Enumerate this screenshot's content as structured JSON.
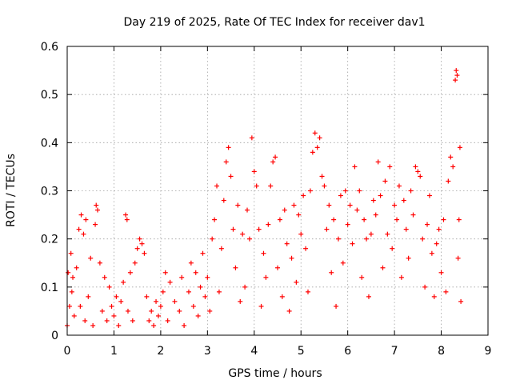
{
  "chart_data": {
    "type": "scatter",
    "title": "Day 219 of 2025, Rate Of TEC Index for receiver dav1",
    "xlabel": "GPS time / hours",
    "ylabel": "ROTI / TECUs",
    "xlim": [
      0,
      9
    ],
    "ylim": [
      0,
      0.6
    ],
    "xticks": [
      "0",
      "1",
      "2",
      "3",
      "4",
      "5",
      "6",
      "7",
      "8",
      "9"
    ],
    "yticks": [
      "0",
      "0.1",
      "0.2",
      "0.3",
      "0.4",
      "0.5",
      "0.6"
    ],
    "grid": true,
    "marker": "+",
    "color": "#ff0000",
    "series": [
      {
        "name": "dav1",
        "points": [
          [
            0.0,
            0.02
          ],
          [
            0.02,
            0.13
          ],
          [
            0.05,
            0.06
          ],
          [
            0.08,
            0.17
          ],
          [
            0.1,
            0.09
          ],
          [
            0.12,
            0.12
          ],
          [
            0.15,
            0.04
          ],
          [
            0.2,
            0.14
          ],
          [
            0.25,
            0.22
          ],
          [
            0.28,
            0.06
          ],
          [
            0.3,
            0.25
          ],
          [
            0.35,
            0.21
          ],
          [
            0.38,
            0.03
          ],
          [
            0.4,
            0.24
          ],
          [
            0.45,
            0.08
          ],
          [
            0.5,
            0.16
          ],
          [
            0.55,
            0.02
          ],
          [
            0.6,
            0.23
          ],
          [
            0.62,
            0.27
          ],
          [
            0.65,
            0.26
          ],
          [
            0.7,
            0.15
          ],
          [
            0.75,
            0.05
          ],
          [
            0.8,
            0.12
          ],
          [
            0.85,
            0.03
          ],
          [
            0.9,
            0.1
          ],
          [
            0.95,
            0.06
          ],
          [
            1.0,
            0.04
          ],
          [
            1.05,
            0.08
          ],
          [
            1.1,
            0.02
          ],
          [
            1.15,
            0.07
          ],
          [
            1.2,
            0.11
          ],
          [
            1.25,
            0.25
          ],
          [
            1.28,
            0.24
          ],
          [
            1.3,
            0.05
          ],
          [
            1.35,
            0.13
          ],
          [
            1.4,
            0.03
          ],
          [
            1.45,
            0.15
          ],
          [
            1.5,
            0.18
          ],
          [
            1.55,
            0.2
          ],
          [
            1.6,
            0.19
          ],
          [
            1.65,
            0.17
          ],
          [
            1.7,
            0.08
          ],
          [
            1.75,
            0.03
          ],
          [
            1.8,
            0.05
          ],
          [
            1.85,
            0.02
          ],
          [
            1.9,
            0.07
          ],
          [
            1.95,
            0.04
          ],
          [
            2.0,
            0.06
          ],
          [
            2.05,
            0.09
          ],
          [
            2.1,
            0.13
          ],
          [
            2.15,
            0.03
          ],
          [
            2.2,
            0.11
          ],
          [
            2.3,
            0.07
          ],
          [
            2.4,
            0.05
          ],
          [
            2.45,
            0.12
          ],
          [
            2.5,
            0.02
          ],
          [
            2.6,
            0.09
          ],
          [
            2.65,
            0.15
          ],
          [
            2.7,
            0.06
          ],
          [
            2.75,
            0.13
          ],
          [
            2.8,
            0.04
          ],
          [
            2.85,
            0.1
          ],
          [
            2.9,
            0.17
          ],
          [
            2.95,
            0.08
          ],
          [
            3.0,
            0.12
          ],
          [
            3.05,
            0.05
          ],
          [
            3.1,
            0.2
          ],
          [
            3.15,
            0.24
          ],
          [
            3.2,
            0.31
          ],
          [
            3.25,
            0.09
          ],
          [
            3.3,
            0.18
          ],
          [
            3.35,
            0.28
          ],
          [
            3.4,
            0.36
          ],
          [
            3.45,
            0.39
          ],
          [
            3.5,
            0.33
          ],
          [
            3.55,
            0.22
          ],
          [
            3.6,
            0.14
          ],
          [
            3.65,
            0.27
          ],
          [
            3.7,
            0.07
          ],
          [
            3.75,
            0.21
          ],
          [
            3.8,
            0.1
          ],
          [
            3.85,
            0.26
          ],
          [
            3.9,
            0.2
          ],
          [
            3.95,
            0.41
          ],
          [
            4.0,
            0.34
          ],
          [
            4.05,
            0.31
          ],
          [
            4.1,
            0.22
          ],
          [
            4.15,
            0.06
          ],
          [
            4.2,
            0.17
          ],
          [
            4.25,
            0.12
          ],
          [
            4.3,
            0.23
          ],
          [
            4.35,
            0.31
          ],
          [
            4.4,
            0.36
          ],
          [
            4.45,
            0.37
          ],
          [
            4.5,
            0.14
          ],
          [
            4.55,
            0.24
          ],
          [
            4.6,
            0.08
          ],
          [
            4.65,
            0.26
          ],
          [
            4.7,
            0.19
          ],
          [
            4.75,
            0.05
          ],
          [
            4.8,
            0.16
          ],
          [
            4.85,
            0.27
          ],
          [
            4.9,
            0.11
          ],
          [
            4.95,
            0.25
          ],
          [
            5.0,
            0.21
          ],
          [
            5.05,
            0.29
          ],
          [
            5.1,
            0.18
          ],
          [
            5.15,
            0.09
          ],
          [
            5.2,
            0.3
          ],
          [
            5.25,
            0.38
          ],
          [
            5.3,
            0.42
          ],
          [
            5.35,
            0.39
          ],
          [
            5.4,
            0.41
          ],
          [
            5.45,
            0.33
          ],
          [
            5.5,
            0.31
          ],
          [
            5.55,
            0.22
          ],
          [
            5.6,
            0.27
          ],
          [
            5.65,
            0.13
          ],
          [
            5.7,
            0.24
          ],
          [
            5.75,
            0.06
          ],
          [
            5.8,
            0.2
          ],
          [
            5.85,
            0.29
          ],
          [
            5.9,
            0.15
          ],
          [
            5.95,
            0.3
          ],
          [
            6.0,
            0.23
          ],
          [
            6.05,
            0.27
          ],
          [
            6.1,
            0.19
          ],
          [
            6.15,
            0.35
          ],
          [
            6.2,
            0.26
          ],
          [
            6.25,
            0.3
          ],
          [
            6.3,
            0.12
          ],
          [
            6.35,
            0.24
          ],
          [
            6.4,
            0.2
          ],
          [
            6.45,
            0.08
          ],
          [
            6.5,
            0.21
          ],
          [
            6.55,
            0.28
          ],
          [
            6.6,
            0.25
          ],
          [
            6.65,
            0.36
          ],
          [
            6.7,
            0.29
          ],
          [
            6.75,
            0.14
          ],
          [
            6.8,
            0.32
          ],
          [
            6.85,
            0.21
          ],
          [
            6.9,
            0.35
          ],
          [
            6.95,
            0.18
          ],
          [
            7.0,
            0.27
          ],
          [
            7.05,
            0.24
          ],
          [
            7.1,
            0.31
          ],
          [
            7.15,
            0.12
          ],
          [
            7.2,
            0.28
          ],
          [
            7.25,
            0.22
          ],
          [
            7.3,
            0.16
          ],
          [
            7.35,
            0.3
          ],
          [
            7.4,
            0.25
          ],
          [
            7.45,
            0.35
          ],
          [
            7.5,
            0.34
          ],
          [
            7.55,
            0.33
          ],
          [
            7.6,
            0.2
          ],
          [
            7.65,
            0.1
          ],
          [
            7.7,
            0.23
          ],
          [
            7.75,
            0.29
          ],
          [
            7.8,
            0.17
          ],
          [
            7.85,
            0.08
          ],
          [
            7.9,
            0.19
          ],
          [
            7.95,
            0.22
          ],
          [
            8.0,
            0.13
          ],
          [
            8.05,
            0.24
          ],
          [
            8.1,
            0.09
          ],
          [
            8.15,
            0.32
          ],
          [
            8.2,
            0.37
          ],
          [
            8.25,
            0.35
          ],
          [
            8.3,
            0.53
          ],
          [
            8.32,
            0.55
          ],
          [
            8.34,
            0.54
          ],
          [
            8.36,
            0.16
          ],
          [
            8.38,
            0.24
          ],
          [
            8.4,
            0.39
          ],
          [
            8.42,
            0.07
          ]
        ]
      }
    ]
  }
}
